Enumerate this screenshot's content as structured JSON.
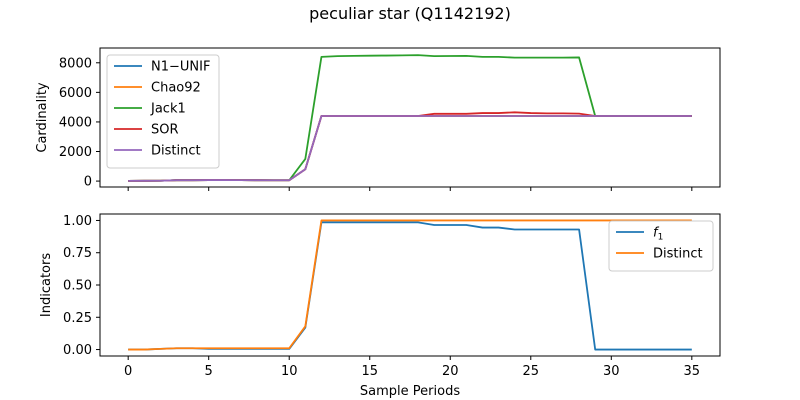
{
  "figure_title": "peculiar star (Q1142192)",
  "chart_data": [
    {
      "type": "line",
      "ylabel": "Cardinality",
      "xlabel": "",
      "xlim": [
        -1.75,
        36.75
      ],
      "ylim": [
        -400,
        9000
      ],
      "xticks": [
        0,
        5,
        10,
        15,
        20,
        25,
        30,
        35
      ],
      "xtick_labels_visible": false,
      "yticks": [
        0,
        2000,
        4000,
        6000,
        8000
      ],
      "legend": "top-left",
      "x": [
        0,
        1,
        2,
        3,
        4,
        5,
        6,
        7,
        8,
        9,
        10,
        11,
        12,
        13,
        14,
        15,
        16,
        17,
        18,
        19,
        20,
        21,
        22,
        23,
        24,
        25,
        26,
        27,
        28,
        29,
        30,
        31,
        32,
        33,
        34,
        35
      ],
      "series": [
        {
          "name": "N1−UNIF",
          "color": "#1f77b4",
          "values": [
            15,
            20,
            25,
            60,
            60,
            70,
            70,
            65,
            60,
            55,
            55,
            800,
            4400,
            4400,
            4400,
            4400,
            4400,
            4400,
            4400,
            4400,
            4400,
            4400,
            4400,
            4400,
            4400,
            4400,
            4400,
            4400,
            4400,
            4400,
            4400,
            4400,
            4400,
            4400,
            4400,
            4400
          ]
        },
        {
          "name": "Chao92",
          "color": "#ff7f0e",
          "values": [
            15,
            20,
            25,
            60,
            60,
            70,
            70,
            65,
            60,
            55,
            55,
            800,
            4400,
            4400,
            4400,
            4400,
            4400,
            4400,
            4400,
            4400,
            4400,
            4400,
            4400,
            4400,
            4400,
            4400,
            4400,
            4400,
            4400,
            4400,
            4400,
            4400,
            4400,
            4400,
            4400,
            4400
          ]
        },
        {
          "name": "Jack1",
          "color": "#2ca02c",
          "values": [
            15,
            20,
            25,
            60,
            60,
            70,
            70,
            65,
            60,
            55,
            55,
            1500,
            8400,
            8450,
            8470,
            8480,
            8490,
            8500,
            8520,
            8450,
            8460,
            8470,
            8400,
            8400,
            8350,
            8350,
            8350,
            8350,
            8360,
            4400,
            4400,
            4400,
            4400,
            4400,
            4400,
            4400
          ]
        },
        {
          "name": "SOR",
          "color": "#d62728",
          "values": [
            15,
            20,
            25,
            60,
            60,
            70,
            70,
            65,
            60,
            55,
            55,
            800,
            4400,
            4400,
            4400,
            4400,
            4400,
            4400,
            4400,
            4550,
            4550,
            4550,
            4600,
            4600,
            4650,
            4600,
            4580,
            4580,
            4560,
            4400,
            4400,
            4400,
            4400,
            4400,
            4400,
            4400
          ]
        },
        {
          "name": "Distinct",
          "color": "#9467bd",
          "values": [
            15,
            20,
            25,
            60,
            60,
            70,
            70,
            65,
            60,
            55,
            55,
            800,
            4400,
            4400,
            4400,
            4400,
            4400,
            4400,
            4400,
            4400,
            4400,
            4400,
            4400,
            4400,
            4400,
            4400,
            4400,
            4400,
            4400,
            4400,
            4400,
            4400,
            4400,
            4400,
            4400,
            4400
          ]
        }
      ]
    },
    {
      "type": "line",
      "ylabel": "Indicators",
      "xlabel": "Sample Periods",
      "xlim": [
        -1.75,
        36.75
      ],
      "ylim": [
        -0.05,
        1.05
      ],
      "xticks": [
        0,
        5,
        10,
        15,
        20,
        25,
        30,
        35
      ],
      "xtick_labels_visible": true,
      "yticks": [
        0.0,
        0.25,
        0.5,
        0.75,
        1.0
      ],
      "ytick_labels": [
        "0.00",
        "0.25",
        "0.50",
        "0.75",
        "1.00"
      ],
      "legend": "top-right",
      "x": [
        0,
        1,
        2,
        3,
        4,
        5,
        6,
        7,
        8,
        9,
        10,
        11,
        12,
        13,
        14,
        15,
        16,
        17,
        18,
        19,
        20,
        21,
        22,
        23,
        24,
        25,
        26,
        27,
        28,
        29,
        30,
        31,
        32,
        33,
        34,
        35
      ],
      "series": [
        {
          "name": "f",
          "name_subscript": "1",
          "color": "#1f77b4",
          "values": [
            0.0,
            0.0,
            0.005,
            0.01,
            0.01,
            0.005,
            0.005,
            0.005,
            0.005,
            0.005,
            0.005,
            0.17,
            0.985,
            0.985,
            0.985,
            0.985,
            0.985,
            0.985,
            0.985,
            0.965,
            0.965,
            0.965,
            0.945,
            0.945,
            0.93,
            0.93,
            0.93,
            0.93,
            0.93,
            0.0,
            0.0,
            0.0,
            0.0,
            0.0,
            0.0,
            0.0
          ]
        },
        {
          "name": "Distinct",
          "color": "#ff7f0e",
          "values": [
            0.0,
            0.0,
            0.005,
            0.01,
            0.01,
            0.01,
            0.01,
            0.01,
            0.01,
            0.01,
            0.01,
            0.18,
            1.0,
            1.0,
            1.0,
            1.0,
            1.0,
            1.0,
            1.0,
            1.0,
            1.0,
            1.0,
            1.0,
            1.0,
            1.0,
            1.0,
            1.0,
            1.0,
            1.0,
            1.0,
            1.0,
            1.0,
            1.0,
            1.0,
            1.0,
            1.0
          ]
        }
      ]
    }
  ]
}
